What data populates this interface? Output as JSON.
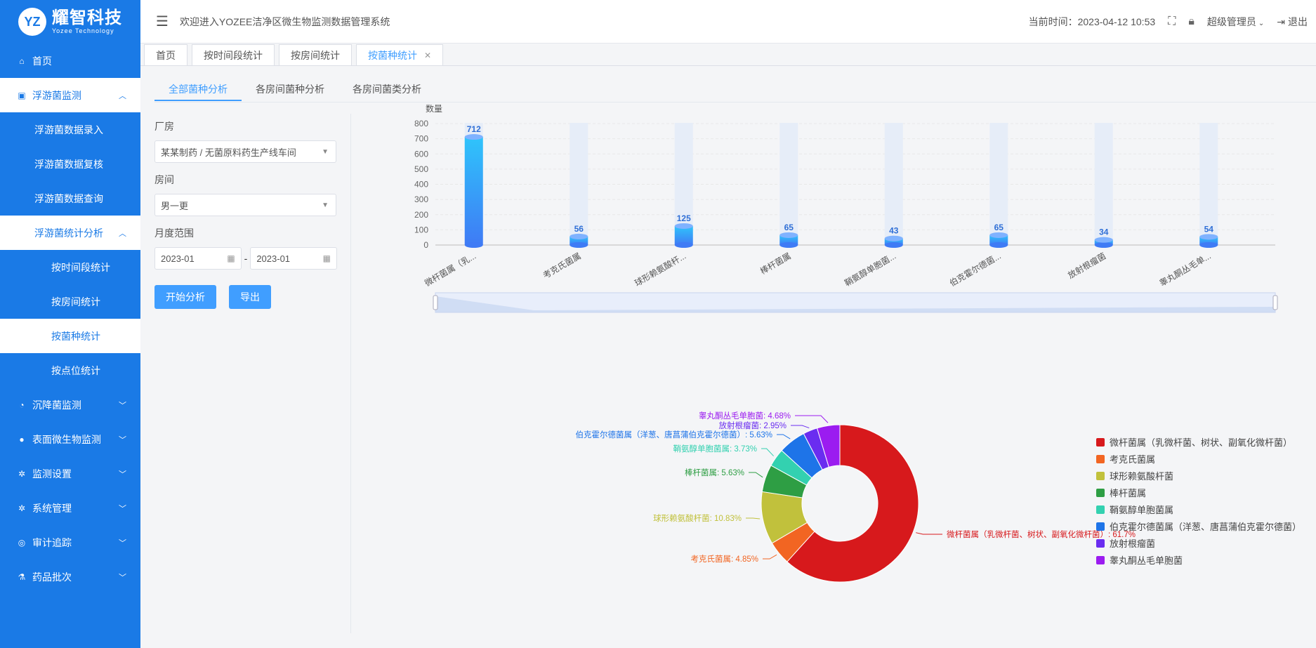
{
  "brand": {
    "mark": "YZ",
    "name_cn": "耀智科技",
    "name_en": "Yozee Technology"
  },
  "sidebar": {
    "items": [
      {
        "label": "首页",
        "icon": "home-icon",
        "style": "top"
      },
      {
        "label": "浮游菌监测",
        "icon": "clipboard-icon",
        "style": "white",
        "arrow": "up"
      },
      {
        "label": "浮游菌数据录入",
        "style": "sub"
      },
      {
        "label": "浮游菌数据复核",
        "style": "sub"
      },
      {
        "label": "浮游菌数据查询",
        "style": "sub"
      },
      {
        "label": "浮游菌统计分析",
        "style": "sub-white",
        "arrow": "up"
      },
      {
        "label": "按时间段统计",
        "style": "sub2"
      },
      {
        "label": "按房间统计",
        "style": "sub2"
      },
      {
        "label": "按菌种统计",
        "style": "sub2-white"
      },
      {
        "label": "按点位统计",
        "style": "sub2"
      },
      {
        "label": "沉降菌监测",
        "icon": "pie-icon",
        "style": "top",
        "arrow": "down"
      },
      {
        "label": "表面微生物监测",
        "icon": "dot-icon",
        "style": "top",
        "arrow": "down"
      },
      {
        "label": "监测设置",
        "icon": "gear-icon",
        "style": "top",
        "arrow": "down"
      },
      {
        "label": "系统管理",
        "icon": "gear-icon",
        "style": "top",
        "arrow": "down"
      },
      {
        "label": "审计追踪",
        "icon": "target-icon",
        "style": "top",
        "arrow": "down"
      },
      {
        "label": "药品批次",
        "icon": "flask-icon",
        "style": "top",
        "arrow": "down"
      }
    ]
  },
  "header": {
    "welcome": "欢迎进入YOZEE洁净区微生物监测数据管理系统",
    "time_label": "当前时间：2023-04-12 10:53",
    "user": "超级管理员",
    "logout": "退出"
  },
  "tabs": [
    {
      "label": "首页",
      "active": false
    },
    {
      "label": "按时间段统计",
      "active": false
    },
    {
      "label": "按房间统计",
      "active": false
    },
    {
      "label": "按菌种统计",
      "active": true
    }
  ],
  "subtabs": [
    {
      "label": "全部菌种分析",
      "active": true
    },
    {
      "label": "各房间菌种分析",
      "active": false
    },
    {
      "label": "各房间菌类分析",
      "active": false
    }
  ],
  "filters": {
    "factory_label": "厂房",
    "factory_value": "某某制药 / 无菌原料药生产线车间",
    "room_label": "房间",
    "room_value": "男一更",
    "range_label": "月度范围",
    "start": "2023-01",
    "end": "2023-01",
    "analyze_btn": "开始分析",
    "export_btn": "导出"
  },
  "chart_data": [
    {
      "type": "bar",
      "ylabel": "数量",
      "ylim": [
        0,
        800
      ],
      "yticks": [
        0,
        100,
        200,
        300,
        400,
        500,
        600,
        700,
        800
      ],
      "categories": [
        "微杆菌属（乳...",
        "考克氏菌属",
        "球形赖氨酸杆...",
        "棒杆菌属",
        "鞘氨醇单胞菌...",
        "伯克霍尔德菌...",
        "放射根瘤菌",
        "睾丸酮丛毛单..."
      ],
      "values": [
        712,
        56,
        125,
        65,
        43,
        65,
        34,
        54
      ],
      "grid": true,
      "colors": {
        "bar_top": "#2fc4fb",
        "bar_bottom": "#3f7bf5",
        "background_bar": "#e6edf8"
      }
    },
    {
      "type": "pie",
      "donut": true,
      "legend_position": "right",
      "slices": [
        {
          "name": "微杆菌属（乳微杆菌、树状、副氧化微杆菌）",
          "label": "微杆菌属（乳微杆菌、树状、副氧化微杆菌）: 61.7%",
          "value": 61.7,
          "color": "#d7191c"
        },
        {
          "name": "考克氏菌属",
          "label": "考克氏菌属: 4.85%",
          "value": 4.85,
          "color": "#f26522"
        },
        {
          "name": "球形赖氨酸杆菌",
          "label": "球形赖氨酸杆菌: 10.83%",
          "value": 10.83,
          "color": "#c1c13c"
        },
        {
          "name": "棒杆菌属",
          "label": "棒杆菌属: 5.63%",
          "value": 5.63,
          "color": "#2e9e44"
        },
        {
          "name": "鞘氨醇单胞菌属",
          "label": "鞘氨醇单胞菌属: 3.73%",
          "value": 3.73,
          "color": "#33d1b0"
        },
        {
          "name": "伯克霍尔德菌属（洋葱、唐菖蒲伯克霍尔德菌）",
          "label": "伯克霍尔德菌属（洋葱、唐菖蒲伯克霍尔德菌）: 5.63%",
          "value": 5.63,
          "color": "#1e74e8"
        },
        {
          "name": "放射根瘤菌",
          "label": "放射根瘤菌: 2.95%",
          "value": 2.95,
          "color": "#6a2df0"
        },
        {
          "name": "睾丸酮丛毛单胞菌",
          "label": "睾丸酮丛毛单胞菌: 4.68%",
          "value": 4.68,
          "color": "#9b1cf0"
        }
      ]
    }
  ]
}
